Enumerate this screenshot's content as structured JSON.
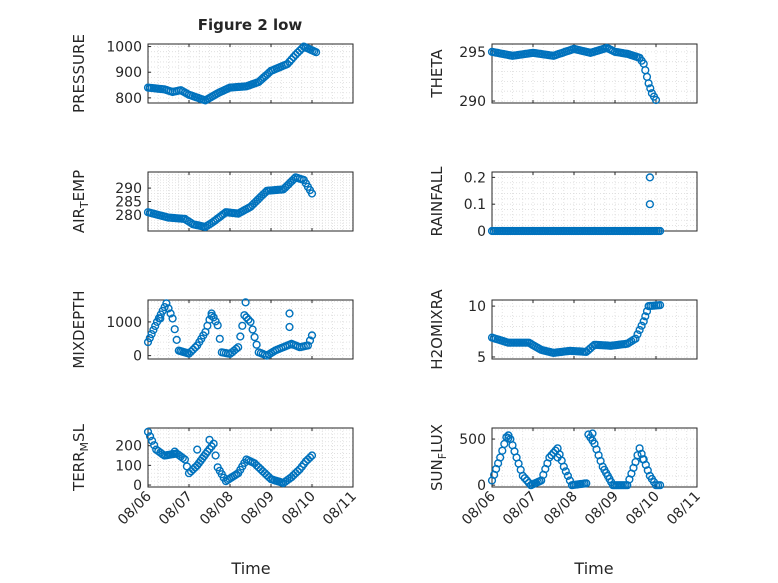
{
  "figure_title": "Figure 2 low",
  "x_axis": {
    "label": "Time",
    "ticks": [
      "08/06",
      "08/07",
      "08/08",
      "08/09",
      "08/10",
      "08/11"
    ],
    "range_days": [
      0,
      5
    ]
  },
  "colors": {
    "marker": "#0072BD",
    "axis": "#262626",
    "grid": "#dcdcdc"
  },
  "chart_data": [
    {
      "id": "pressure",
      "type": "scatter",
      "ylabel": "PRESSURE",
      "ylim": [
        780,
        1010
      ],
      "yticks": [
        800,
        900,
        1000
      ],
      "knots": [
        [
          0,
          840
        ],
        [
          0.4,
          833
        ],
        [
          0.6,
          823
        ],
        [
          0.8,
          830
        ],
        [
          1.0,
          812
        ],
        [
          1.4,
          790
        ],
        [
          1.7,
          818
        ],
        [
          2.0,
          840
        ],
        [
          2.4,
          845
        ],
        [
          2.7,
          862
        ],
        [
          3.0,
          905
        ],
        [
          3.4,
          932
        ],
        [
          3.6,
          968
        ],
        [
          3.8,
          1000
        ],
        [
          4.1,
          978
        ]
      ]
    },
    {
      "id": "theta",
      "type": "scatter",
      "ylabel": "THETA",
      "ylim": [
        289.8,
        295.8
      ],
      "yticks": [
        290,
        295
      ],
      "knots": [
        [
          0,
          295.0
        ],
        [
          0.5,
          294.6
        ],
        [
          1.0,
          294.9
        ],
        [
          1.5,
          294.6
        ],
        [
          2.0,
          295.3
        ],
        [
          2.4,
          294.9
        ],
        [
          2.8,
          295.4
        ],
        [
          3.0,
          295.0
        ],
        [
          3.3,
          294.8
        ],
        [
          3.6,
          294.4
        ],
        [
          3.7,
          293.8
        ],
        [
          3.82,
          291.8
        ],
        [
          3.9,
          290.8
        ],
        [
          4.0,
          290.1
        ]
      ]
    },
    {
      "id": "air_temp",
      "type": "scatter",
      "ylabel": "AIR_TEMP",
      "ylim": [
        274,
        296
      ],
      "yticks": [
        280,
        285,
        290
      ],
      "knots": [
        [
          0,
          281
        ],
        [
          0.5,
          279
        ],
        [
          0.9,
          278.5
        ],
        [
          1.1,
          276.5
        ],
        [
          1.4,
          275.5
        ],
        [
          1.6,
          277.5
        ],
        [
          1.9,
          281
        ],
        [
          2.2,
          280.5
        ],
        [
          2.5,
          283
        ],
        [
          2.9,
          289
        ],
        [
          3.3,
          289.5
        ],
        [
          3.6,
          294
        ],
        [
          3.8,
          293
        ],
        [
          4.0,
          288
        ]
      ]
    },
    {
      "id": "rainfall",
      "type": "scatter",
      "ylabel": "RAINFALL",
      "ylim": [
        0,
        0.22
      ],
      "yticks": [
        0,
        0.1,
        0.2
      ],
      "knots": [
        [
          0,
          0
        ],
        [
          4.1,
          0
        ]
      ],
      "extra_points": [
        [
          3.85,
          0.2
        ],
        [
          3.85,
          0.1
        ]
      ]
    },
    {
      "id": "mixdepth",
      "type": "scatter",
      "ylabel": "MIXDEPTH",
      "ylim": [
        -100,
        1650
      ],
      "yticks": [
        0,
        1000
      ],
      "knots": [
        [
          0,
          400
        ],
        [
          0.22,
          1000
        ],
        [
          0.45,
          1550
        ],
        [
          0.6,
          1100
        ],
        [
          0.75,
          150
        ],
        [
          1.0,
          60
        ],
        [
          1.2,
          300
        ],
        [
          1.4,
          700
        ],
        [
          1.55,
          1250
        ],
        [
          1.7,
          900
        ],
        [
          1.8,
          100
        ],
        [
          2.0,
          50
        ],
        [
          2.2,
          250
        ],
        [
          2.35,
          1200
        ],
        [
          2.5,
          1000
        ],
        [
          2.7,
          100
        ],
        [
          2.9,
          0
        ],
        [
          3.1,
          150
        ],
        [
          3.3,
          250
        ],
        [
          3.5,
          350
        ],
        [
          3.7,
          250
        ],
        [
          3.9,
          300
        ],
        [
          4.0,
          600
        ]
      ],
      "extra_points": [
        [
          2.38,
          1580
        ],
        [
          3.45,
          1250
        ],
        [
          3.45,
          850
        ],
        [
          1.55,
          1180
        ],
        [
          0.3,
          1100
        ]
      ]
    },
    {
      "id": "h2omixra",
      "type": "scatter",
      "ylabel": "H2OMIXRA",
      "ylim": [
        4.8,
        10.6
      ],
      "yticks": [
        5,
        10
      ],
      "knots": [
        [
          0,
          6.9
        ],
        [
          0.4,
          6.4
        ],
        [
          0.9,
          6.4
        ],
        [
          1.2,
          5.7
        ],
        [
          1.5,
          5.4
        ],
        [
          1.9,
          5.6
        ],
        [
          2.3,
          5.5
        ],
        [
          2.5,
          6.2
        ],
        [
          2.9,
          6.1
        ],
        [
          3.3,
          6.3
        ],
        [
          3.5,
          6.8
        ],
        [
          3.7,
          8.5
        ],
        [
          3.82,
          10.0
        ],
        [
          4.1,
          10.1
        ]
      ]
    },
    {
      "id": "terr_msl",
      "type": "scatter",
      "ylabel": "TERR_MSL",
      "ylim": [
        -10,
        290
      ],
      "yticks": [
        0,
        100,
        200
      ],
      "knots": [
        [
          0,
          270
        ],
        [
          0.2,
          180
        ],
        [
          0.4,
          150
        ],
        [
          0.7,
          160
        ],
        [
          0.9,
          130
        ],
        [
          1.0,
          60
        ],
        [
          1.2,
          100
        ],
        [
          1.45,
          170
        ],
        [
          1.6,
          210
        ],
        [
          1.7,
          90
        ],
        [
          1.9,
          20
        ],
        [
          2.2,
          60
        ],
        [
          2.4,
          130
        ],
        [
          2.6,
          110
        ],
        [
          2.8,
          70
        ],
        [
          3.0,
          30
        ],
        [
          3.3,
          10
        ],
        [
          3.5,
          40
        ],
        [
          3.7,
          80
        ],
        [
          3.85,
          120
        ],
        [
          4.0,
          150
        ]
      ],
      "extra_points": [
        [
          1.5,
          230
        ],
        [
          1.2,
          180
        ],
        [
          0.65,
          170
        ]
      ]
    },
    {
      "id": "sun_flux",
      "type": "scatter",
      "ylabel": "SUN_FLUX",
      "ylim": [
        -20,
        620
      ],
      "yticks": [
        0,
        500
      ],
      "knots": [
        [
          0,
          50
        ],
        [
          0.2,
          300
        ],
        [
          0.35,
          520
        ],
        [
          0.45,
          500
        ],
        [
          0.6,
          300
        ],
        [
          0.75,
          100
        ],
        [
          0.95,
          0
        ],
        [
          1.2,
          50
        ],
        [
          1.4,
          300
        ],
        [
          1.6,
          400
        ],
        [
          1.75,
          200
        ],
        [
          1.95,
          0
        ],
        [
          2.3,
          20
        ],
        [
          2.35,
          550
        ],
        [
          2.5,
          450
        ],
        [
          2.7,
          200
        ],
        [
          2.95,
          0
        ],
        [
          3.3,
          0
        ],
        [
          3.5,
          250
        ],
        [
          3.6,
          400
        ],
        [
          3.7,
          280
        ],
        [
          3.85,
          100
        ],
        [
          4.0,
          0
        ],
        [
          4.1,
          0
        ]
      ],
      "extra_points": [
        [
          2.45,
          560
        ],
        [
          1.6,
          300
        ],
        [
          3.68,
          280
        ],
        [
          0.4,
          540
        ]
      ]
    }
  ]
}
